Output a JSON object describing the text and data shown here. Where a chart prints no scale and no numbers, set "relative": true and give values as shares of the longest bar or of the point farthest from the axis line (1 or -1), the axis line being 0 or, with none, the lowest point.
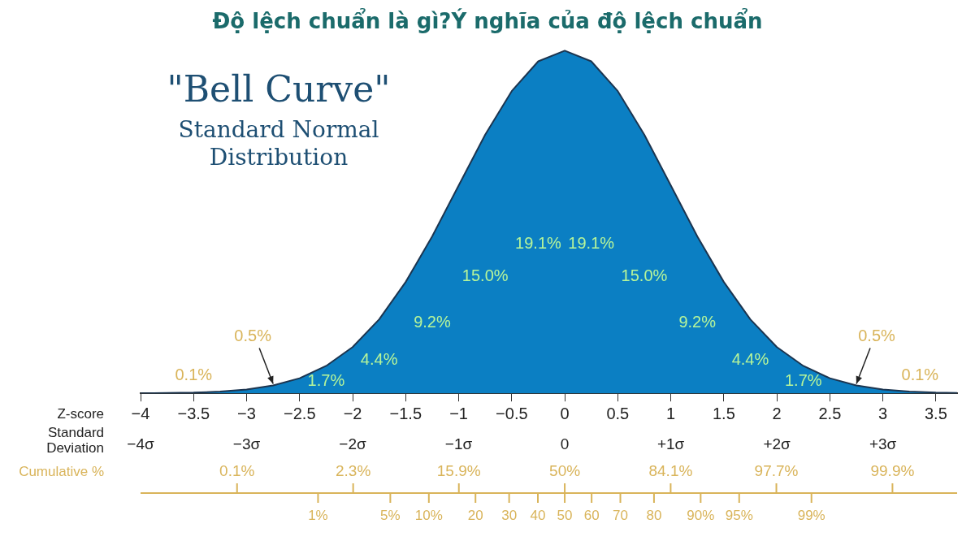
{
  "chart_data": {
    "type": "area",
    "title": "Độ lệch chuẩn là gì?Ý nghĩa của độ lệch chuẩn",
    "relative": true,
    "x": [
      -4,
      -3.75,
      -3.5,
      -3.25,
      -3,
      -2.75,
      -2.5,
      -2.25,
      -2,
      -1.75,
      -1.5,
      -1.25,
      -1,
      -0.75,
      -0.5,
      -0.25,
      0,
      0.25,
      0.5,
      0.75,
      1,
      1.25,
      1.5,
      1.75,
      2,
      2.25,
      2.5,
      2.75,
      3,
      3.25,
      3.5,
      3.7
    ],
    "series": [
      {
        "color": "#0b7fc3",
        "values": [
          0,
          0.001,
          0.002,
          0.005,
          0.011,
          0.023,
          0.044,
          0.08,
          0.135,
          0.216,
          0.325,
          0.458,
          0.607,
          0.755,
          0.882,
          0.969,
          1,
          0.969,
          0.882,
          0.755,
          0.607,
          0.458,
          0.325,
          0.216,
          0.135,
          0.08,
          0.044,
          0.023,
          0.011,
          0.005,
          0.002,
          0.001
        ]
      }
    ],
    "xlim": [
      -4,
      3.7
    ],
    "xticks": [
      {
        "value": -4,
        "label": "−4"
      },
      {
        "value": -3.5,
        "label": "−3.5"
      },
      {
        "value": -3,
        "label": "−3"
      },
      {
        "value": -2.5,
        "label": "−2.5"
      },
      {
        "value": -2,
        "label": "−2"
      },
      {
        "value": -1.5,
        "label": "−1.5"
      },
      {
        "value": -1,
        "label": "−1"
      },
      {
        "value": -0.5,
        "label": "−0.5"
      },
      0,
      0.5,
      1,
      1.5,
      2,
      2.5,
      3,
      3.5
    ],
    "xlabel": "Z-score",
    "x2lim": [
      -4,
      3.7
    ],
    "x2ticks": [
      {
        "value": -4,
        "label": "−4σ"
      },
      {
        "value": -3,
        "label": "−3σ"
      },
      {
        "value": -2,
        "label": "−2σ"
      },
      {
        "value": -1,
        "label": "−1σ"
      },
      0,
      {
        "value": 1,
        "label": "+1σ"
      },
      {
        "value": 2,
        "label": "+2σ"
      },
      {
        "value": 3,
        "label": "+3σ"
      }
    ],
    "x2label": "Standard Deviation",
    "annotations": [
      "\"Bell Curve\"",
      "Standard Normal",
      "Distribution",
      "Cumulative %",
      "0.1%",
      "0.5%",
      "1.7%",
      "4.4%",
      "9.2%",
      "15.0%",
      "19.1%",
      "19.1%",
      "15.0%",
      "9.2%",
      "4.4%",
      "1.7%",
      "0.5%",
      "0.1%",
      "0.1%",
      "2.3%",
      "15.9%",
      "50%",
      "84.1%",
      "97.7%",
      "99.9%",
      "1%",
      "5%",
      "10%",
      "20",
      "30",
      "40",
      "50",
      "60",
      "70",
      "80",
      "90%",
      "95%",
      "99%"
    ],
    "legend": false,
    "marker": "none",
    "line_style": "solid"
  }
}
